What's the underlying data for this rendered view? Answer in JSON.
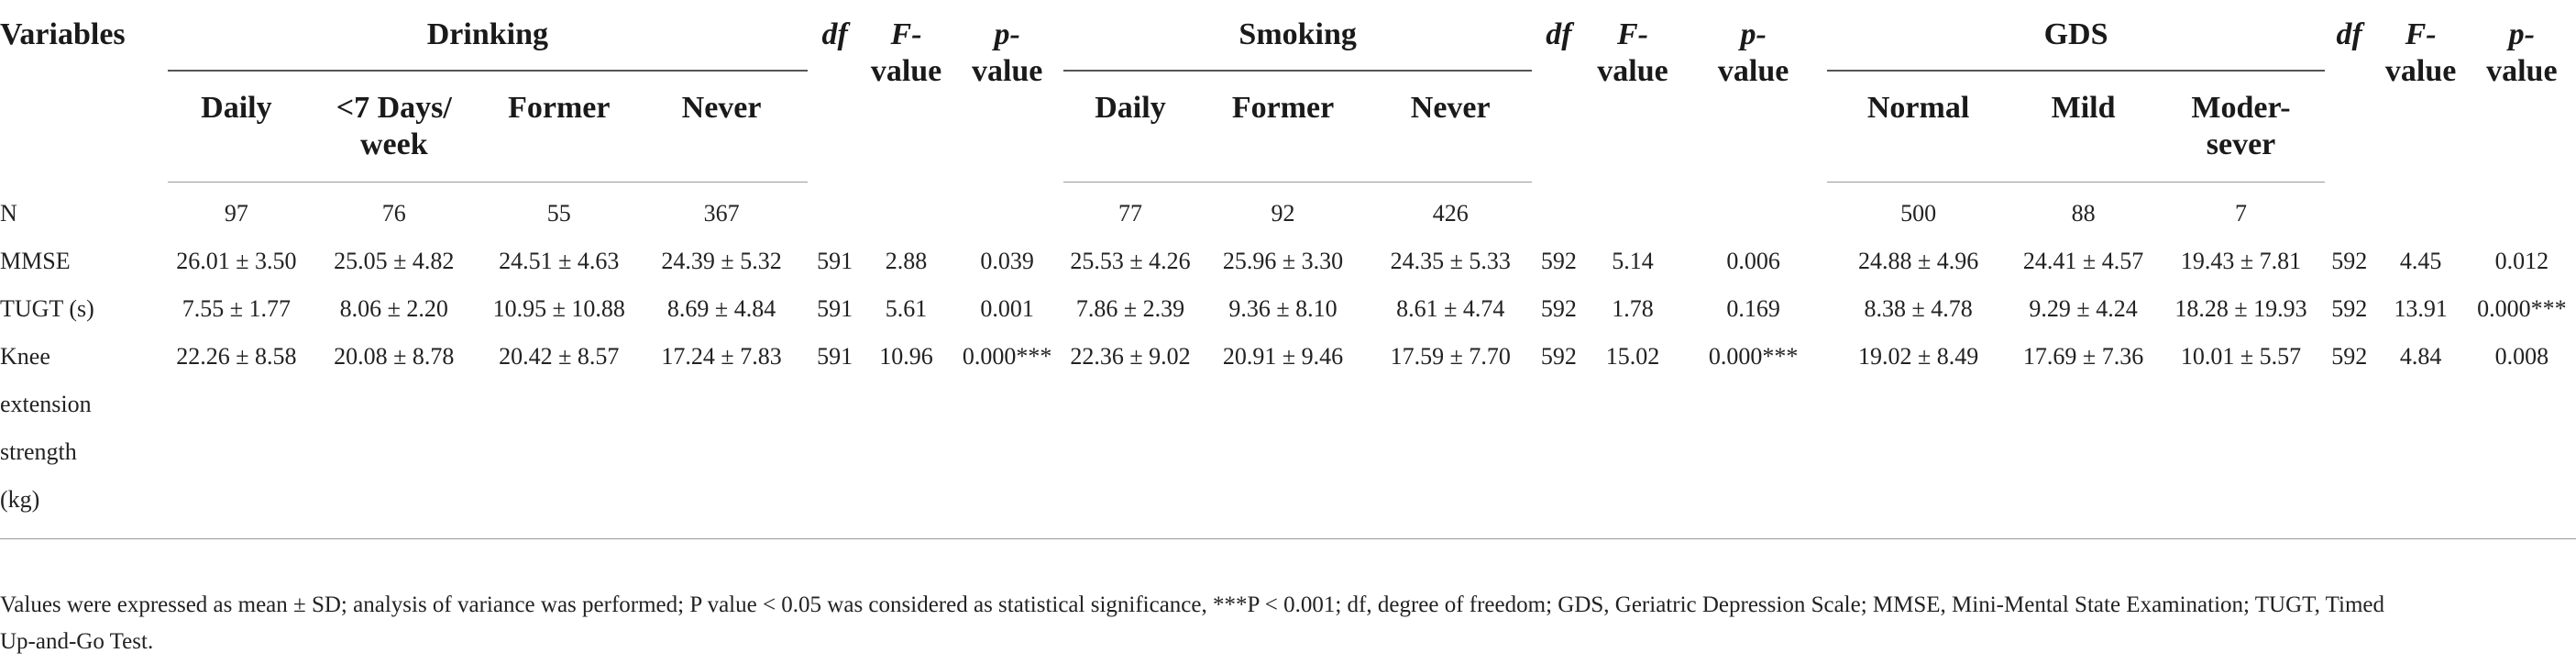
{
  "headers": {
    "variables": "Variables",
    "groups": {
      "drinking": "Drinking",
      "smoking": "Smoking",
      "gds": "GDS"
    },
    "stat": {
      "df": "df",
      "f_line1": "F-",
      "f_line2": "value",
      "p_line1": "p-",
      "p_line2": "value"
    },
    "drinking_cols": [
      "Daily",
      "<7 Days/",
      "week",
      "Former",
      "Never"
    ],
    "smoking_cols": [
      "Daily",
      "Former",
      "Never"
    ],
    "gds_cols": [
      "Normal",
      "Mild",
      "Moder-",
      "sever"
    ]
  },
  "rows": [
    {
      "label": "N",
      "drinking": [
        "97",
        "76",
        "55",
        "367"
      ],
      "d_stats": [
        "",
        "",
        ""
      ],
      "smoking": [
        "77",
        "92",
        "426"
      ],
      "s_stats": [
        "",
        "",
        ""
      ],
      "gds": [
        "500",
        "88",
        "7"
      ],
      "g_stats": [
        "",
        "",
        ""
      ]
    },
    {
      "label": "MMSE",
      "drinking": [
        "26.01 ± 3.50",
        "25.05 ± 4.82",
        "24.51 ± 4.63",
        "24.39 ± 5.32"
      ],
      "d_stats": [
        "591",
        "2.88",
        "0.039"
      ],
      "smoking": [
        "25.53 ± 4.26",
        "25.96 ± 3.30",
        "24.35 ± 5.33"
      ],
      "s_stats": [
        "592",
        "5.14",
        "0.006"
      ],
      "gds": [
        "24.88 ± 4.96",
        "24.41 ± 4.57",
        "19.43 ± 7.81"
      ],
      "g_stats": [
        "592",
        "4.45",
        "0.012"
      ]
    },
    {
      "label": "TUGT (s)",
      "drinking": [
        "7.55 ± 1.77",
        "8.06 ± 2.20",
        "10.95 ± 10.88",
        "8.69 ± 4.84"
      ],
      "d_stats": [
        "591",
        "5.61",
        "0.001"
      ],
      "smoking": [
        "7.86 ± 2.39",
        "9.36 ± 8.10",
        "8.61 ± 4.74"
      ],
      "s_stats": [
        "592",
        "1.78",
        "0.169"
      ],
      "gds": [
        "8.38 ± 4.78",
        "9.29 ± 4.24",
        "18.28 ± 19.93"
      ],
      "g_stats": [
        "592",
        "13.91",
        "0.000***"
      ]
    },
    {
      "label_lines": [
        "Knee",
        "extension",
        "strength",
        "(kg)"
      ],
      "drinking": [
        "22.26 ± 8.58",
        "20.08 ± 8.78",
        "20.42 ± 8.57",
        "17.24 ± 7.83"
      ],
      "d_stats": [
        "591",
        "10.96",
        "0.000***"
      ],
      "smoking": [
        "22.36 ± 9.02",
        "20.91 ± 9.46",
        "17.59 ± 7.70"
      ],
      "s_stats": [
        "592",
        "15.02",
        "0.000***"
      ],
      "gds": [
        "19.02 ± 8.49",
        "17.69 ± 7.36",
        "10.01 ± 5.57"
      ],
      "g_stats": [
        "592",
        "4.84",
        "0.008"
      ]
    }
  ],
  "footnote_line1": "Values were expressed as mean ± SD; analysis of variance was performed; P value < 0.05 was considered as statistical significance, ***P < 0.001; df, degree of freedom; GDS, Geriatric Depression Scale; MMSE, Mini-Mental State Examination; TUGT, Timed",
  "footnote_line2": "Up-and-Go Test."
}
